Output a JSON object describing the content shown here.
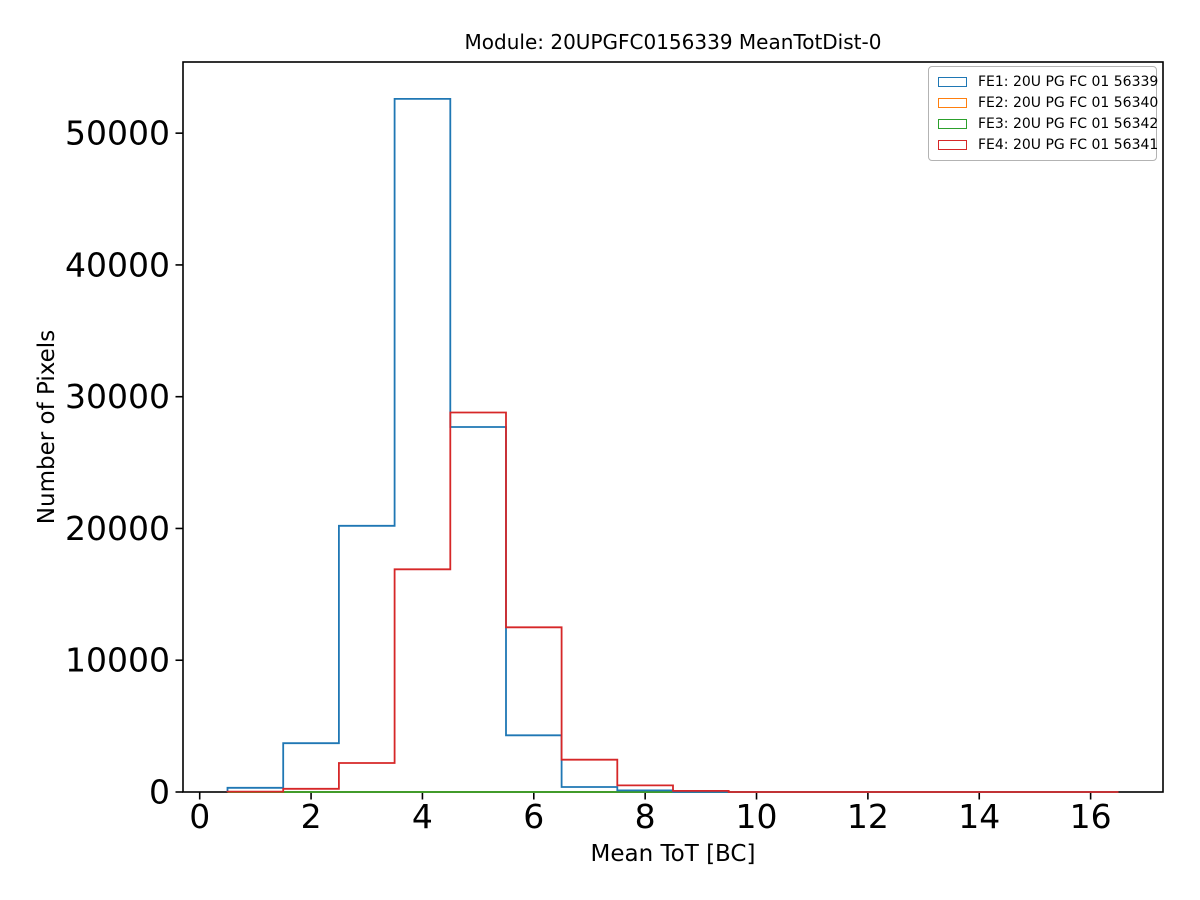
{
  "chart_data": {
    "type": "histogram-step",
    "title": "Module: 20UPGFC0156339 MeanTotDist-0",
    "xlabel": "Mean ToT [BC]",
    "ylabel": "Number of Pixels",
    "bin_edges": [
      0.5,
      1.5,
      2.5,
      3.5,
      4.5,
      5.5,
      6.5,
      7.5,
      8.5,
      9.5,
      10.5,
      11.5,
      12.5,
      13.5,
      14.5,
      15.5,
      16.5
    ],
    "series": [
      {
        "name": "FE1: 20U PG FC 01 56339",
        "color": "#1f77b4",
        "values": [
          320,
          3700,
          20200,
          52600,
          27700,
          4300,
          380,
          120,
          0,
          0,
          0,
          0,
          0,
          0,
          0,
          0
        ]
      },
      {
        "name": "FE2: 20U PG FC 01 56340",
        "color": "#ff7f0e",
        "values": [
          0,
          0,
          0,
          0,
          0,
          0,
          0,
          0,
          0,
          0,
          0,
          0,
          0,
          0,
          0,
          0
        ]
      },
      {
        "name": "FE3: 20U PG FC 01 56342",
        "color": "#2ca02c",
        "values": [
          0,
          0,
          0,
          0,
          0,
          0,
          0,
          0,
          0,
          0,
          0,
          0,
          0,
          0,
          0,
          0
        ]
      },
      {
        "name": "FE4: 20U PG FC 01 56341",
        "color": "#d62728",
        "values": [
          30,
          240,
          2200,
          16900,
          28800,
          12500,
          2450,
          500,
          80,
          0,
          0,
          0,
          0,
          0,
          0,
          0
        ]
      }
    ],
    "xlim": [
      -0.3,
      17.3
    ],
    "ylim": [
      0,
      55400
    ],
    "xticks": [
      0,
      2,
      4,
      6,
      8,
      10,
      12,
      14,
      16
    ],
    "yticks": [
      0,
      10000,
      20000,
      30000,
      40000,
      50000
    ],
    "legend_position": "upper right",
    "grid": false,
    "axis_color": "#000000",
    "background_color": "#ffffff"
  }
}
